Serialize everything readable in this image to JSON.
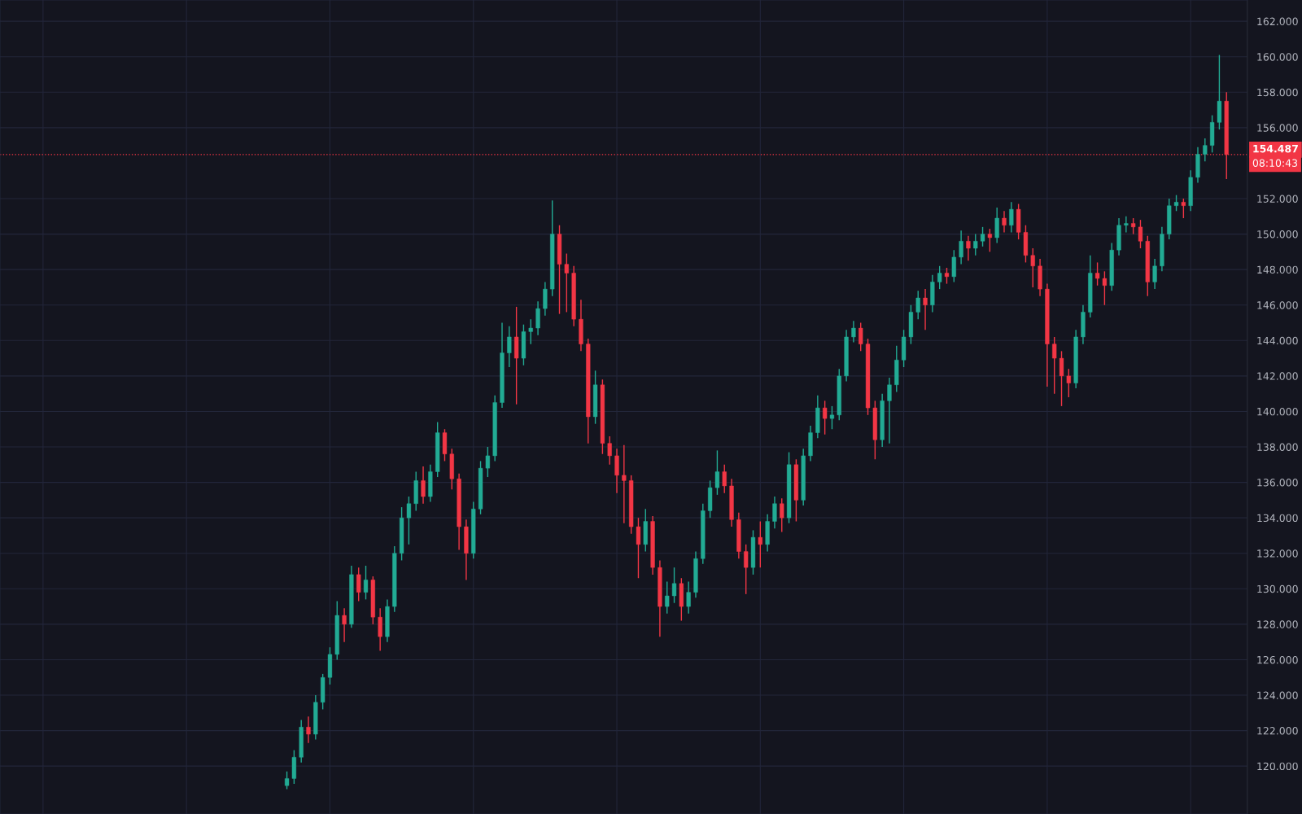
{
  "chart_data": {
    "type": "candlestick",
    "categories": [
      null,
      null,
      null,
      null,
      null,
      null,
      null,
      null,
      null,
      null,
      null,
      null,
      null,
      null,
      null,
      null,
      null,
      null,
      null,
      null,
      null,
      null,
      null,
      null,
      null,
      null,
      null,
      null,
      null,
      null,
      null,
      null,
      null,
      null,
      null,
      null,
      null,
      null,
      null,
      null,
      null,
      null,
      null,
      null,
      null,
      null,
      null,
      null,
      null,
      null,
      null,
      null,
      null,
      null,
      null,
      null,
      null,
      null,
      null,
      null,
      null,
      null,
      null,
      null,
      null,
      null,
      null,
      null,
      null,
      null,
      null,
      null,
      null,
      null,
      null,
      null,
      null,
      null,
      null,
      null,
      null,
      null,
      null,
      null,
      null,
      null,
      null,
      null,
      null,
      null,
      null,
      null,
      null,
      null,
      null,
      null,
      null,
      null,
      null,
      null,
      null,
      null,
      null,
      null,
      null,
      null,
      null,
      null,
      null,
      null,
      null,
      null,
      null,
      null,
      null,
      null,
      null,
      null,
      null,
      null,
      null,
      null,
      null,
      null,
      null,
      null,
      null,
      null,
      null,
      null,
      null,
      null
    ],
    "ohlc": [
      [
        118.9,
        119.7,
        118.7,
        119.3
      ],
      [
        119.3,
        120.9,
        119.0,
        120.5
      ],
      [
        120.5,
        122.6,
        120.2,
        122.2
      ],
      [
        122.2,
        122.8,
        121.3,
        121.8
      ],
      [
        121.8,
        124.0,
        121.5,
        123.6
      ],
      [
        123.6,
        125.2,
        123.2,
        125.0
      ],
      [
        125.0,
        126.7,
        124.6,
        126.3
      ],
      [
        126.3,
        129.3,
        126.0,
        128.5
      ],
      [
        128.5,
        128.9,
        127.0,
        128.0
      ],
      [
        128.0,
        131.3,
        127.8,
        130.8
      ],
      [
        130.8,
        131.2,
        129.3,
        129.8
      ],
      [
        129.8,
        131.3,
        129.4,
        130.5
      ],
      [
        130.5,
        130.7,
        128.0,
        128.4
      ],
      [
        128.4,
        128.9,
        126.5,
        127.3
      ],
      [
        127.3,
        129.4,
        127.0,
        129.0
      ],
      [
        129.0,
        132.4,
        128.7,
        132.0
      ],
      [
        132.0,
        134.6,
        131.6,
        134.0
      ],
      [
        134.0,
        135.2,
        132.5,
        134.8
      ],
      [
        134.8,
        136.6,
        134.4,
        136.1
      ],
      [
        136.1,
        136.9,
        134.8,
        135.2
      ],
      [
        135.2,
        137.0,
        134.9,
        136.6
      ],
      [
        136.6,
        139.4,
        136.3,
        138.8
      ],
      [
        138.8,
        139.0,
        137.2,
        137.6
      ],
      [
        137.6,
        137.9,
        135.6,
        136.2
      ],
      [
        136.2,
        136.5,
        132.2,
        133.5
      ],
      [
        133.5,
        133.9,
        130.5,
        132.0
      ],
      [
        132.0,
        134.9,
        131.7,
        134.5
      ],
      [
        134.5,
        137.2,
        134.2,
        136.8
      ],
      [
        136.8,
        138.0,
        136.3,
        137.5
      ],
      [
        137.5,
        140.9,
        137.2,
        140.5
      ],
      [
        140.5,
        145.0,
        140.2,
        143.3
      ],
      [
        143.3,
        144.8,
        142.5,
        144.2
      ],
      [
        144.2,
        145.9,
        140.4,
        143.0
      ],
      [
        143.0,
        144.9,
        142.6,
        144.5
      ],
      [
        144.5,
        145.2,
        143.8,
        144.7
      ],
      [
        144.7,
        146.2,
        144.3,
        145.8
      ],
      [
        145.8,
        147.3,
        145.4,
        146.9
      ],
      [
        146.9,
        151.9,
        146.5,
        150.0
      ],
      [
        150.0,
        150.5,
        145.5,
        148.3
      ],
      [
        148.3,
        148.9,
        145.6,
        147.8
      ],
      [
        147.8,
        148.2,
        144.8,
        145.2
      ],
      [
        145.2,
        146.3,
        143.4,
        143.8
      ],
      [
        143.8,
        144.1,
        138.2,
        139.7
      ],
      [
        139.7,
        142.3,
        139.3,
        141.5
      ],
      [
        141.5,
        141.8,
        137.6,
        138.2
      ],
      [
        138.2,
        138.6,
        137.0,
        137.5
      ],
      [
        137.5,
        137.9,
        135.4,
        136.4
      ],
      [
        136.4,
        138.1,
        133.7,
        136.1
      ],
      [
        136.1,
        136.4,
        133.1,
        133.5
      ],
      [
        133.5,
        134.0,
        130.6,
        132.5
      ],
      [
        132.5,
        134.5,
        132.1,
        133.8
      ],
      [
        133.8,
        134.1,
        130.8,
        131.2
      ],
      [
        131.2,
        131.6,
        127.3,
        129.0
      ],
      [
        129.0,
        130.4,
        128.6,
        129.6
      ],
      [
        129.6,
        131.2,
        129.2,
        130.3
      ],
      [
        130.3,
        130.6,
        128.2,
        129.0
      ],
      [
        129.0,
        130.4,
        128.6,
        129.8
      ],
      [
        129.8,
        132.1,
        129.5,
        131.7
      ],
      [
        131.7,
        134.8,
        131.4,
        134.4
      ],
      [
        134.4,
        136.1,
        134.0,
        135.7
      ],
      [
        135.7,
        137.8,
        135.3,
        136.6
      ],
      [
        136.6,
        137.0,
        135.4,
        135.8
      ],
      [
        135.8,
        136.2,
        133.5,
        133.9
      ],
      [
        133.9,
        134.3,
        131.7,
        132.1
      ],
      [
        132.1,
        132.5,
        129.7,
        131.2
      ],
      [
        131.2,
        133.3,
        130.8,
        132.9
      ],
      [
        132.9,
        133.8,
        131.2,
        132.5
      ],
      [
        132.5,
        134.2,
        132.1,
        133.8
      ],
      [
        133.8,
        135.2,
        133.4,
        134.8
      ],
      [
        134.8,
        135.1,
        133.2,
        134.0
      ],
      [
        134.0,
        137.7,
        133.7,
        137.0
      ],
      [
        137.0,
        137.3,
        133.8,
        135.0
      ],
      [
        135.0,
        137.9,
        134.7,
        137.5
      ],
      [
        137.5,
        139.2,
        137.2,
        138.8
      ],
      [
        138.8,
        140.9,
        138.5,
        140.2
      ],
      [
        140.2,
        140.6,
        138.7,
        139.6
      ],
      [
        139.6,
        140.3,
        139.0,
        139.8
      ],
      [
        139.8,
        142.4,
        139.5,
        142.0
      ],
      [
        142.0,
        144.6,
        141.7,
        144.2
      ],
      [
        144.2,
        145.1,
        143.9,
        144.7
      ],
      [
        144.7,
        145.0,
        143.4,
        143.8
      ],
      [
        143.8,
        144.1,
        139.8,
        140.2
      ],
      [
        140.2,
        140.6,
        137.3,
        138.4
      ],
      [
        138.4,
        141.0,
        138.0,
        140.6
      ],
      [
        140.6,
        141.9,
        138.2,
        141.5
      ],
      [
        141.5,
        143.7,
        141.1,
        142.9
      ],
      [
        142.9,
        144.6,
        142.5,
        144.2
      ],
      [
        144.2,
        146.0,
        143.8,
        145.6
      ],
      [
        145.6,
        146.8,
        145.2,
        146.4
      ],
      [
        146.4,
        146.9,
        144.6,
        146.0
      ],
      [
        146.0,
        147.7,
        145.6,
        147.3
      ],
      [
        147.3,
        148.2,
        146.9,
        147.8
      ],
      [
        147.8,
        148.1,
        147.2,
        147.6
      ],
      [
        147.6,
        149.1,
        147.3,
        148.7
      ],
      [
        148.7,
        150.2,
        148.3,
        149.6
      ],
      [
        149.6,
        149.9,
        148.5,
        149.2
      ],
      [
        149.2,
        150.0,
        148.8,
        149.6
      ],
      [
        149.6,
        150.4,
        149.3,
        150.0
      ],
      [
        150.0,
        150.3,
        149.0,
        149.8
      ],
      [
        149.8,
        151.5,
        149.5,
        150.9
      ],
      [
        150.9,
        151.3,
        150.1,
        150.5
      ],
      [
        150.5,
        151.8,
        150.1,
        151.4
      ],
      [
        151.4,
        151.7,
        149.7,
        150.1
      ],
      [
        150.1,
        150.5,
        148.4,
        148.8
      ],
      [
        148.8,
        149.2,
        147.0,
        148.2
      ],
      [
        148.2,
        148.6,
        146.5,
        146.9
      ],
      [
        146.9,
        147.2,
        141.4,
        143.8
      ],
      [
        143.8,
        144.2,
        141.0,
        143.0
      ],
      [
        143.0,
        143.4,
        140.3,
        142.0
      ],
      [
        142.0,
        142.4,
        140.8,
        141.6
      ],
      [
        141.6,
        144.6,
        141.3,
        144.2
      ],
      [
        144.2,
        146.0,
        143.8,
        145.6
      ],
      [
        145.6,
        148.8,
        145.3,
        147.8
      ],
      [
        147.8,
        148.4,
        147.1,
        147.5
      ],
      [
        147.5,
        147.9,
        146.0,
        147.1
      ],
      [
        147.1,
        149.5,
        146.8,
        149.1
      ],
      [
        149.1,
        150.9,
        148.8,
        150.5
      ],
      [
        150.5,
        151.0,
        150.1,
        150.6
      ],
      [
        150.6,
        150.9,
        150.0,
        150.4
      ],
      [
        150.4,
        150.8,
        149.2,
        149.6
      ],
      [
        149.6,
        149.9,
        146.5,
        147.3
      ],
      [
        147.3,
        148.6,
        146.9,
        148.2
      ],
      [
        148.2,
        150.4,
        147.9,
        150.0
      ],
      [
        150.0,
        152.0,
        149.7,
        151.6
      ],
      [
        151.6,
        152.2,
        151.3,
        151.8
      ],
      [
        151.8,
        152.0,
        150.9,
        151.6
      ],
      [
        151.6,
        153.6,
        151.3,
        153.2
      ],
      [
        153.2,
        154.9,
        152.9,
        154.5
      ],
      [
        154.5,
        155.4,
        154.1,
        155.0
      ],
      [
        155.0,
        156.7,
        154.6,
        156.3
      ],
      [
        156.3,
        160.1,
        155.9,
        157.5
      ],
      [
        157.5,
        158.0,
        153.1,
        154.487
      ]
    ],
    "colors": [
      "#22ab94",
      "#22ab94",
      "#22ab94",
      "#f23645",
      "#22ab94",
      "#22ab94",
      "#22ab94",
      "#22ab94",
      "#f23645",
      "#22ab94",
      "#f23645",
      "#22ab94",
      "#f23645",
      "#f23645",
      "#22ab94",
      "#22ab94",
      "#22ab94",
      "#22ab94",
      "#22ab94",
      "#f23645",
      "#22ab94",
      "#22ab94",
      "#f23645",
      "#f23645",
      "#f23645",
      "#f23645",
      "#22ab94",
      "#22ab94",
      "#22ab94",
      "#22ab94",
      "#22ab94",
      "#22ab94",
      "#f23645",
      "#22ab94",
      "#22ab94",
      "#22ab94",
      "#22ab94",
      "#22ab94",
      "#f23645",
      "#f23645",
      "#f23645",
      "#f23645",
      "#f23645",
      "#22ab94",
      "#f23645",
      "#f23645",
      "#f23645",
      "#f23645",
      "#f23645",
      "#f23645",
      "#22ab94",
      "#f23645",
      "#f23645",
      "#22ab94",
      "#22ab94",
      "#f23645",
      "#22ab94",
      "#22ab94",
      "#22ab94",
      "#22ab94",
      "#22ab94",
      "#f23645",
      "#f23645",
      "#f23645",
      "#f23645",
      "#22ab94",
      "#f23645",
      "#22ab94",
      "#22ab94",
      "#f23645",
      "#22ab94",
      "#f23645",
      "#22ab94",
      "#22ab94",
      "#22ab94",
      "#f23645",
      "#22ab94",
      "#22ab94",
      "#22ab94",
      "#22ab94",
      "#f23645",
      "#f23645",
      "#f23645",
      "#22ab94",
      "#22ab94",
      "#22ab94",
      "#22ab94",
      "#22ab94",
      "#22ab94",
      "#f23645",
      "#22ab94",
      "#22ab94",
      "#f23645",
      "#22ab94",
      "#22ab94",
      "#f23645",
      "#22ab94",
      "#22ab94",
      "#f23645",
      "#22ab94",
      "#f23645",
      "#22ab94",
      "#f23645",
      "#f23645",
      "#f23645",
      "#f23645",
      "#f23645",
      "#f23645",
      "#f23645",
      "#f23645",
      "#22ab94",
      "#22ab94",
      "#22ab94",
      "#f23645",
      "#f23645",
      "#22ab94",
      "#22ab94",
      "#22ab94",
      "#f23645",
      "#f23645",
      "#f23645",
      "#22ab94",
      "#22ab94",
      "#22ab94",
      "#22ab94",
      "#f23645",
      "#22ab94",
      "#22ab94",
      "#22ab94",
      "#22ab94",
      "#22ab94",
      "#f23645"
    ],
    "ylim": [
      117.3,
      163.2
    ],
    "yticks": [
      {
        "value": 120,
        "label": "120.000"
      },
      {
        "value": 122,
        "label": "122.000"
      },
      {
        "value": 124,
        "label": "124.000"
      },
      {
        "value": 126,
        "label": "126.000"
      },
      {
        "value": 128,
        "label": "128.000"
      },
      {
        "value": 130,
        "label": "130.000"
      },
      {
        "value": 132,
        "label": "132.000"
      },
      {
        "value": 134,
        "label": "134.000"
      },
      {
        "value": 136,
        "label": "136.000"
      },
      {
        "value": 138,
        "label": "138.000"
      },
      {
        "value": 140,
        "label": "140.000"
      },
      {
        "value": 142,
        "label": "142.000"
      },
      {
        "value": 144,
        "label": "144.000"
      },
      {
        "value": 146,
        "label": "146.000"
      },
      {
        "value": 148,
        "label": "148.000"
      },
      {
        "value": 150,
        "label": "150.000"
      },
      {
        "value": 152,
        "label": "152.000"
      },
      {
        "value": 156,
        "label": "156.000"
      },
      {
        "value": 158,
        "label": "158.000"
      },
      {
        "value": 160,
        "label": "160.000"
      },
      {
        "value": 162,
        "label": "162.000"
      }
    ],
    "ref_lines": [
      {
        "axis": "y",
        "value": 154.487,
        "label": "154.487",
        "color": "#f23645",
        "line_style": "dotted"
      }
    ],
    "annotations": [
      "08:10:43"
    ],
    "grid": true,
    "tick_labels": "y"
  }
}
